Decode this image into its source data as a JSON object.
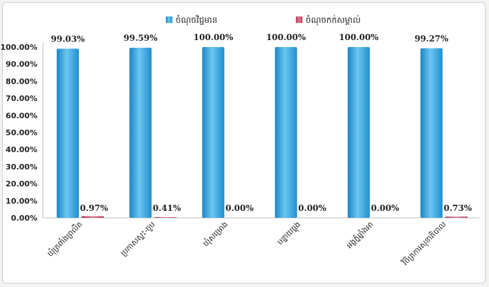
{
  "chart_data": {
    "type": "bar",
    "categories": [
      "ឃុំត្រពាំងព្រលឹត",
      "ប្រកាសស្ទះ-ចូប",
      "ឃុំសម្រោង",
      "បន្ទាយធ្លុង",
      "អង្គភ្នំឆ្នាំងអា",
      "វិចិត្រការសុខាភិបាល"
    ],
    "series": [
      {
        "name": "ចំណុចវិជ្ជមាន",
        "values": [
          99.03,
          99.59,
          100.0,
          100.0,
          100.0,
          99.27
        ],
        "labels": [
          "99.03%",
          "99.59%",
          "100.00%",
          "100.00%",
          "100.00%",
          "99.27%"
        ]
      },
      {
        "name": "ចំណុចកក់សម្គាល់",
        "values": [
          0.97,
          0.41,
          0.0,
          0.0,
          0.0,
          0.73
        ],
        "labels": [
          "0.97%",
          "0.41%",
          "0.00%",
          "0.00%",
          "0.00%",
          "0.73%"
        ]
      }
    ],
    "yticks": [
      "0.00%",
      "10.00%",
      "20.00%",
      "30.00%",
      "40.00%",
      "50.00%",
      "60.00%",
      "70.00%",
      "80.00%",
      "90.00%",
      "100.00%"
    ],
    "ylim": [
      0,
      100
    ],
    "grid": true,
    "legend": "top",
    "colors": {
      "series1": "#2a9fd8",
      "series1_light": "#7fcdf2",
      "series2": "#c8506e",
      "axis": "#bdbdbd"
    }
  }
}
